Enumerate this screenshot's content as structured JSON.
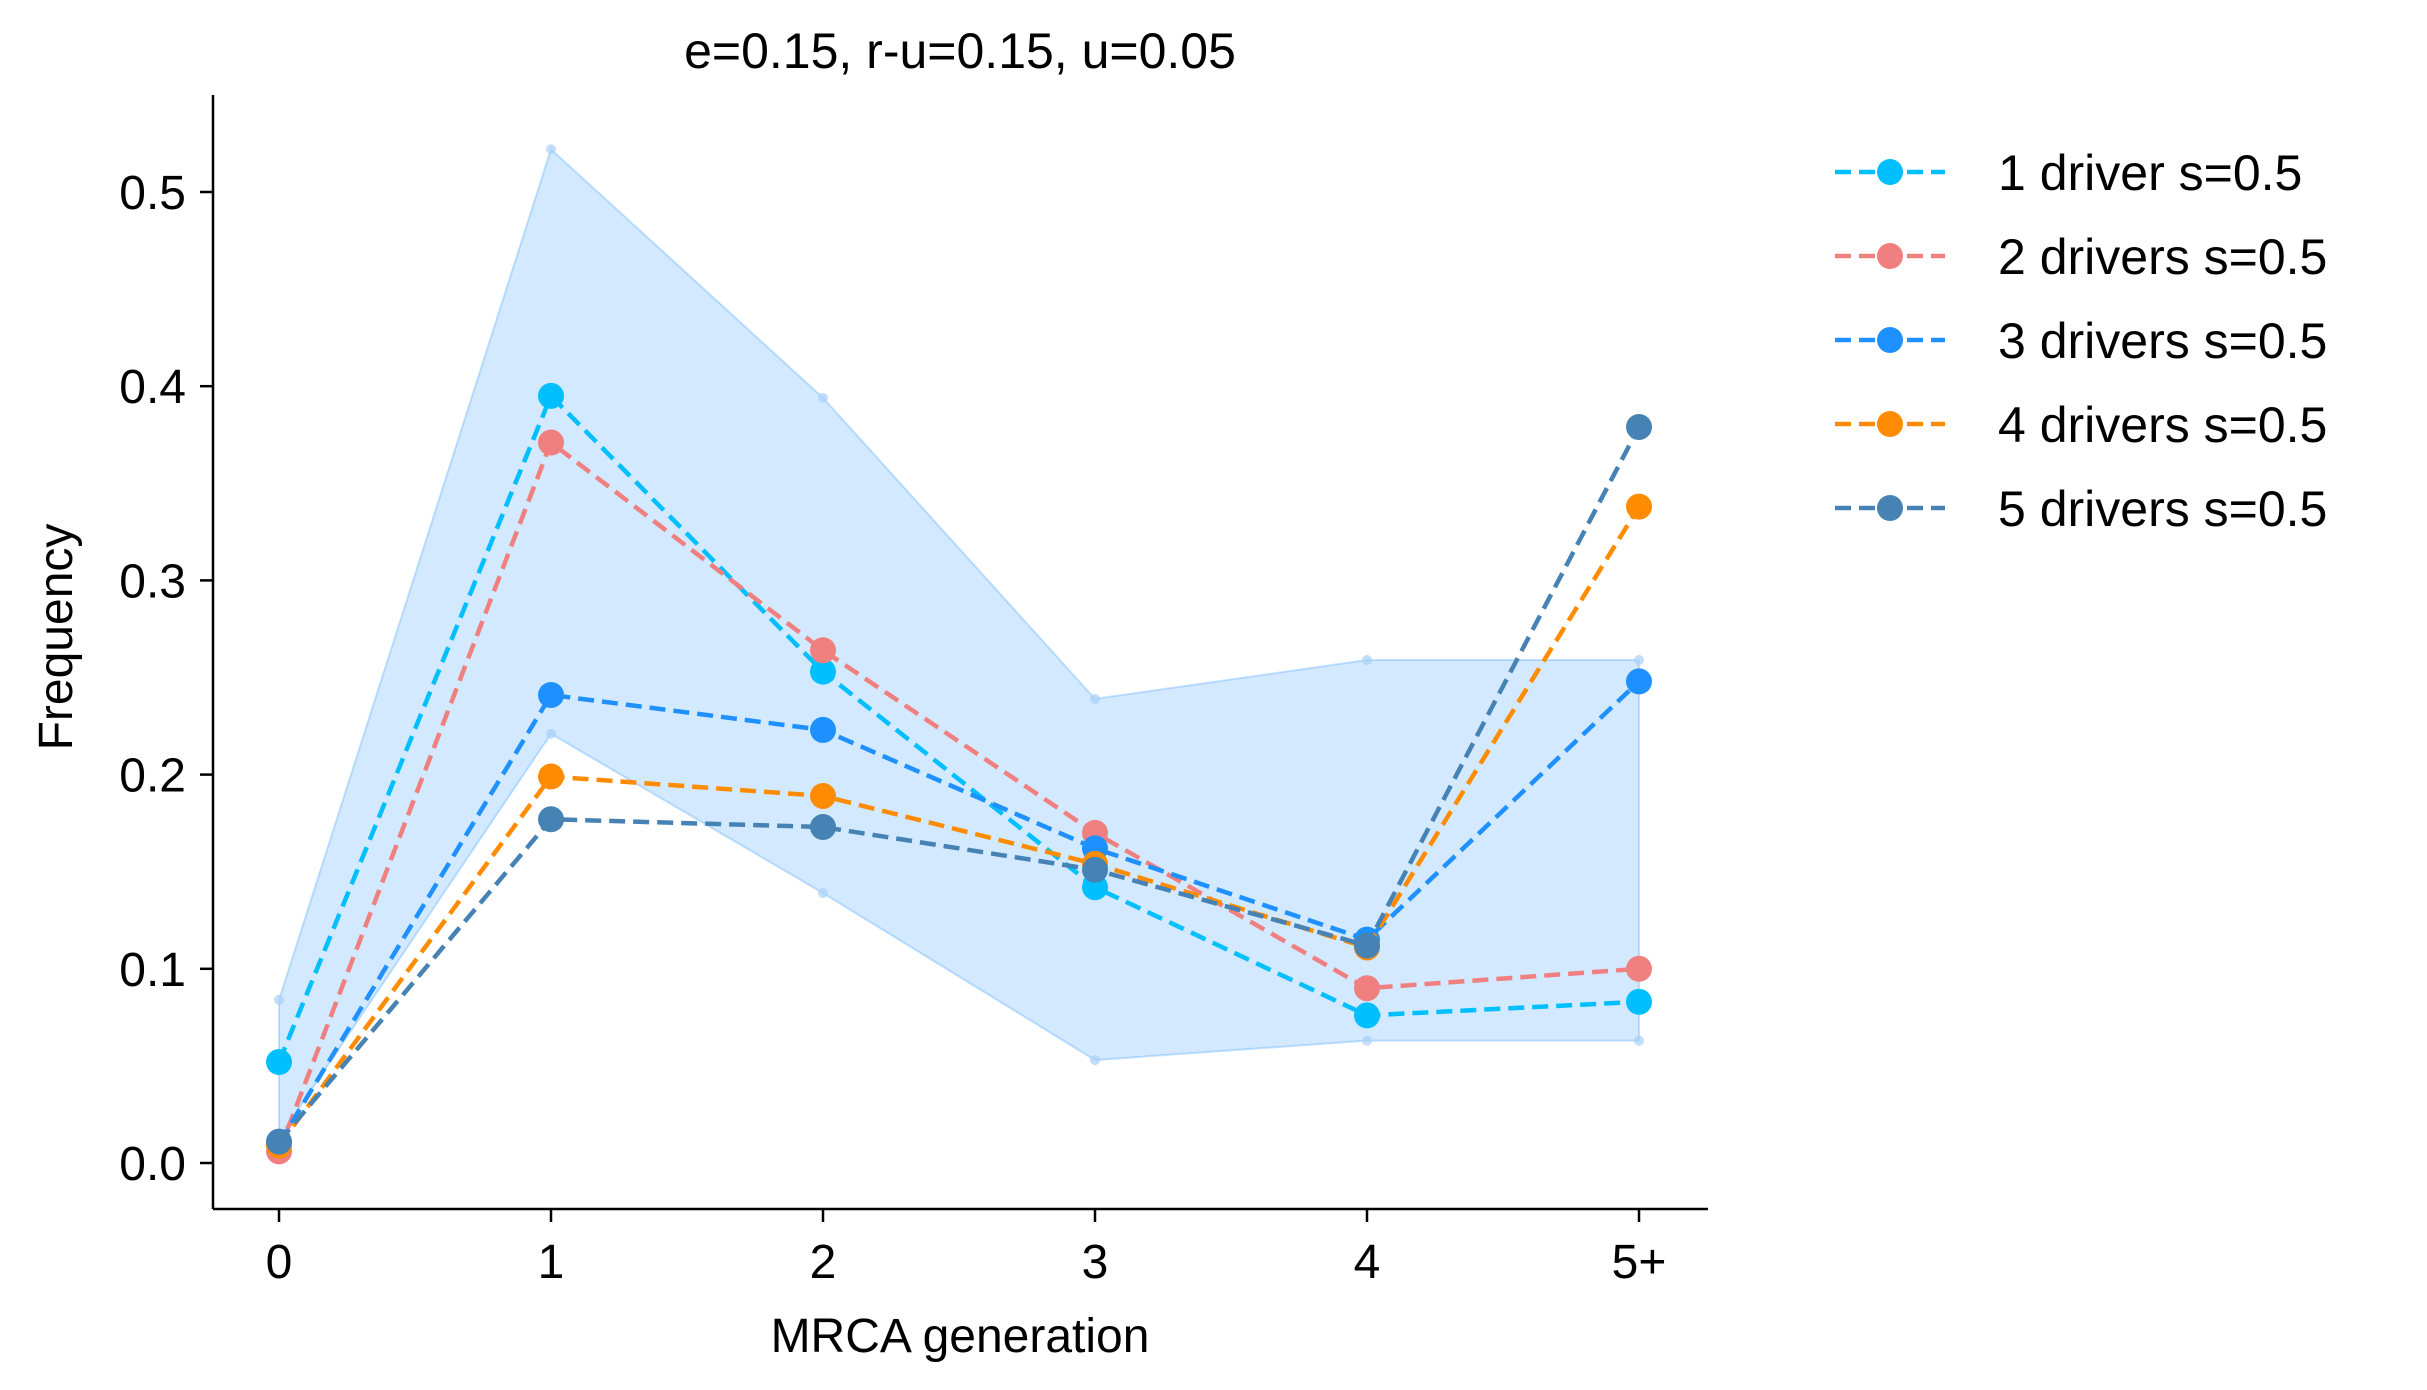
{
  "chart_data": {
    "type": "line",
    "title": "e=0.15, r-u=0.15, u=0.05",
    "xlabel": "MRCA generation",
    "ylabel": "Frequency",
    "categories": [
      "0",
      "1",
      "2",
      "3",
      "4",
      "5+"
    ],
    "yticks": [
      "0.0",
      "0.1",
      "0.2",
      "0.3",
      "0.4",
      "0.5"
    ],
    "ylim": [
      -0.025,
      0.55
    ],
    "grid": false,
    "legend_position": "outside right, top",
    "band": {
      "color": "#1e90ff",
      "upper": [
        0.084,
        0.522,
        0.394,
        0.239,
        0.259,
        0.259
      ],
      "lower": [
        0.013,
        0.221,
        0.139,
        0.053,
        0.063,
        0.063
      ]
    },
    "series": [
      {
        "name": "1 driver s=0.5",
        "color": "#00bfff",
        "values": [
          0.052,
          0.395,
          0.253,
          0.142,
          0.076,
          0.083
        ]
      },
      {
        "name": "2 drivers s=0.5",
        "color": "#f08080",
        "values": [
          0.006,
          0.371,
          0.264,
          0.17,
          0.09,
          0.1
        ]
      },
      {
        "name": "3 drivers s=0.5",
        "color": "#1e90ff",
        "values": [
          0.01,
          0.241,
          0.223,
          0.162,
          0.115,
          0.248
        ]
      },
      {
        "name": "4 drivers s=0.5",
        "color": "#ff8c00",
        "values": [
          0.009,
          0.199,
          0.189,
          0.154,
          0.111,
          0.338
        ]
      },
      {
        "name": "5 drivers s=0.5",
        "color": "#4682b4",
        "values": [
          0.011,
          0.177,
          0.173,
          0.151,
          0.112,
          0.379
        ]
      }
    ]
  }
}
